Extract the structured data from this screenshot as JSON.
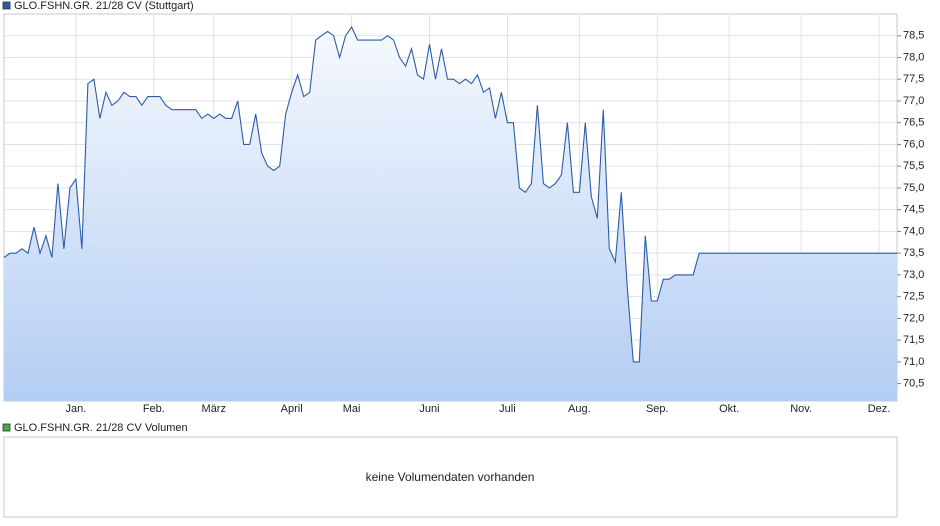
{
  "chart_data": {
    "type": "line",
    "series": [
      {
        "name": "GLO.FSHN.GR. 21/28 CV (Stuttgart)",
        "color": "#2a5caa",
        "values": [
          73.4,
          73.5,
          73.5,
          73.6,
          73.5,
          74.1,
          73.5,
          73.9,
          73.4,
          75.1,
          73.6,
          75.0,
          75.2,
          73.6,
          77.4,
          77.5,
          76.6,
          77.2,
          76.9,
          77.0,
          77.2,
          77.1,
          77.1,
          76.9,
          77.1,
          77.1,
          77.1,
          76.9,
          76.8,
          76.8,
          76.8,
          76.8,
          76.8,
          76.6,
          76.7,
          76.6,
          76.7,
          76.6,
          76.6,
          77.0,
          76.0,
          76.0,
          76.7,
          75.8,
          75.5,
          75.4,
          75.5,
          76.7,
          77.2,
          77.6,
          77.1,
          77.2,
          78.4,
          78.5,
          78.6,
          78.5,
          78.0,
          78.5,
          78.7,
          78.4,
          78.4,
          78.4,
          78.4,
          78.4,
          78.5,
          78.4,
          78.0,
          77.8,
          78.2,
          77.6,
          77.5,
          78.3,
          77.5,
          78.2,
          77.5,
          77.5,
          77.4,
          77.5,
          77.4,
          77.6,
          77.2,
          77.3,
          76.6,
          77.2,
          76.5,
          76.5,
          75.0,
          74.9,
          75.1,
          76.9,
          75.1,
          75.0,
          75.1,
          75.3,
          76.5,
          74.9,
          74.9,
          76.5,
          74.8,
          74.3,
          76.8,
          73.6,
          73.3,
          74.9,
          72.7,
          71.0,
          71.0,
          73.9,
          72.4,
          72.4,
          72.9,
          72.9,
          73.0,
          73.0,
          73.0,
          73.0,
          73.5,
          73.5,
          73.5,
          73.5,
          73.5,
          73.5,
          73.5,
          73.5,
          73.5,
          73.5,
          73.5,
          73.5,
          73.5,
          73.5,
          73.5,
          73.5,
          73.5,
          73.5,
          73.5,
          73.5,
          73.5,
          73.5,
          73.5,
          73.5,
          73.5,
          73.5,
          73.5,
          73.5,
          73.5,
          73.5,
          73.5,
          73.5,
          73.5,
          73.5
        ]
      }
    ],
    "categories": [
      null,
      null,
      null,
      null,
      null,
      null,
      null,
      null,
      null,
      null,
      null,
      null,
      "Jan.",
      null,
      null,
      null,
      null,
      null,
      null,
      null,
      null,
      null,
      null,
      null,
      null,
      "Feb.",
      null,
      null,
      null,
      null,
      null,
      null,
      null,
      null,
      null,
      "März",
      null,
      null,
      null,
      null,
      null,
      null,
      null,
      null,
      null,
      null,
      null,
      null,
      "April",
      null,
      null,
      null,
      null,
      null,
      null,
      null,
      null,
      null,
      "Mai",
      null,
      null,
      null,
      null,
      null,
      null,
      null,
      null,
      null,
      null,
      null,
      null,
      "Juni",
      null,
      null,
      null,
      null,
      null,
      null,
      null,
      null,
      null,
      null,
      null,
      null,
      "Juli",
      null,
      null,
      null,
      null,
      null,
      null,
      null,
      null,
      null,
      null,
      null,
      "Aug.",
      null,
      null,
      null,
      null,
      null,
      null,
      null,
      null,
      null,
      null,
      null,
      null,
      "Sep.",
      null,
      null,
      null,
      null,
      null,
      null,
      null,
      null,
      null,
      null,
      null,
      "Okt.",
      null,
      null,
      null,
      null,
      null,
      null,
      null,
      null,
      null,
      null,
      null,
      "Nov.",
      null,
      null,
      null,
      null,
      null,
      null,
      null,
      null,
      null,
      null,
      null,
      null,
      "Dez.",
      null,
      null,
      null
    ],
    "ylim": [
      70.1,
      79.0
    ],
    "yticks": [
      {
        "value": 70.5,
        "label": "70,5"
      },
      {
        "value": 71,
        "label": "71,0"
      },
      {
        "value": 71.5,
        "label": "71,5"
      },
      {
        "value": 72,
        "label": "72,0"
      },
      {
        "value": 72.5,
        "label": "72,5"
      },
      {
        "value": 73,
        "label": "73,0"
      },
      {
        "value": 73.5,
        "label": "73,5"
      },
      {
        "value": 74,
        "label": "74,0"
      },
      {
        "value": 74.5,
        "label": "74,5"
      },
      {
        "value": 75,
        "label": "75,0"
      },
      {
        "value": 75.5,
        "label": "75,5"
      },
      {
        "value": 76,
        "label": "76,0"
      },
      {
        "value": 76.5,
        "label": "76,5"
      },
      {
        "value": 77,
        "label": "77,0"
      },
      {
        "value": 77.5,
        "label": "77,5"
      },
      {
        "value": 78,
        "label": "78,0"
      },
      {
        "value": 78.5,
        "label": "78,5"
      }
    ],
    "grid": true,
    "legend": "top-left",
    "area": true
  },
  "volume_panel": {
    "legend": "GLO.FSHN.GR. 21/28 CV Volumen",
    "legend_color": "#44aa44",
    "message": "keine Volumendaten vorhanden"
  }
}
